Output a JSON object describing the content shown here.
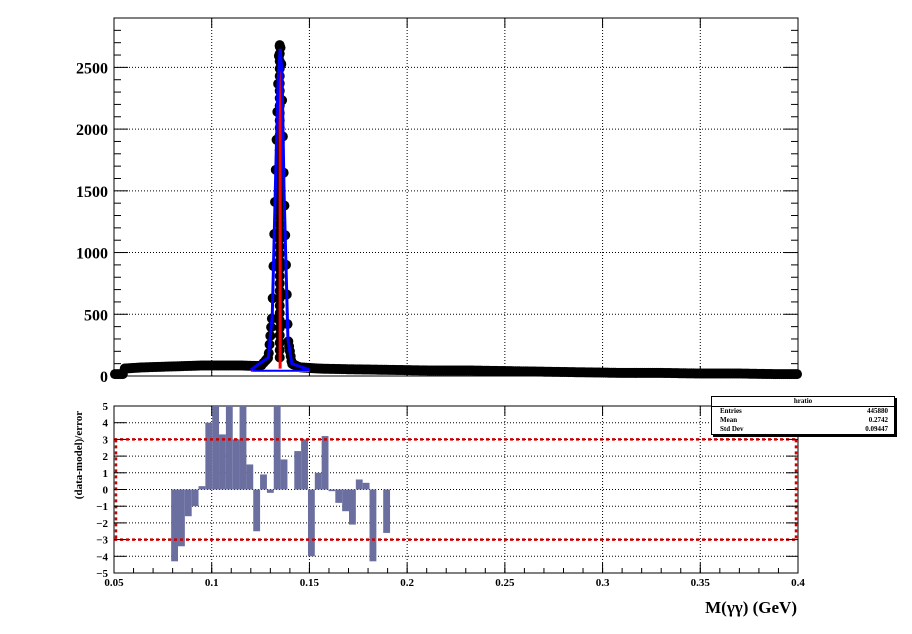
{
  "chart_data": [
    {
      "type": "scatter",
      "panel": "main",
      "xlim": [
        0.05,
        0.4
      ],
      "ylim": [
        0,
        2900
      ],
      "y_ticks": [
        0,
        500,
        1000,
        1500,
        2000,
        2500
      ],
      "grid": true,
      "data_points": {
        "x": [
          0.055,
          0.065,
          0.075,
          0.085,
          0.095,
          0.105,
          0.115,
          0.125,
          0.129,
          0.131,
          0.133,
          0.1345,
          0.135,
          0.1355,
          0.137,
          0.139,
          0.141,
          0.145,
          0.155,
          0.17,
          0.19,
          0.21,
          0.23,
          0.25,
          0.27,
          0.29,
          0.31,
          0.33,
          0.35,
          0.37,
          0.39
        ],
        "y": [
          60,
          70,
          75,
          80,
          85,
          85,
          85,
          80,
          150,
          500,
          1800,
          2650,
          2700,
          2600,
          1500,
          300,
          100,
          70,
          60,
          55,
          50,
          45,
          45,
          40,
          35,
          30,
          25,
          25,
          20,
          20,
          15
        ]
      },
      "fit_model": {
        "color": "#0000ff",
        "x": [
          0.12,
          0.129,
          0.131,
          0.133,
          0.134,
          0.135,
          0.136,
          0.137,
          0.139,
          0.141,
          0.15
        ],
        "y": [
          50,
          150,
          500,
          1800,
          2400,
          2650,
          2450,
          1500,
          300,
          100,
          50
        ]
      },
      "signal_component": {
        "color": "#ff0000",
        "peak_x": 0.135,
        "peak_y": 2650
      },
      "background_line": {
        "color": "#ff00ff",
        "x": [
          0.12,
          0.15
        ],
        "y": [
          40,
          40
        ]
      }
    },
    {
      "type": "bar",
      "panel": "ratio",
      "ylabel": "(data-model)/error",
      "xlabel": "M(γγ) (GeV)",
      "xlim": [
        0.05,
        0.4
      ],
      "ylim": [
        -5,
        5
      ],
      "x_ticks": [
        "0.05",
        "0.1",
        "0.15",
        "0.2",
        "0.25",
        "0.3",
        "0.35",
        "0.4"
      ],
      "y_ticks": [
        "−5",
        "−4",
        "−3",
        "−2",
        "−1",
        "0",
        "1",
        "2",
        "3",
        "4",
        "5"
      ],
      "reference_lines": {
        "values": [
          3,
          -3
        ],
        "color": "#cc0000",
        "style": "dashed"
      },
      "bar_color": "#6a6fa0",
      "bin_width": 0.0035,
      "bins": {
        "x": [
          0.081,
          0.0845,
          0.088,
          0.0915,
          0.095,
          0.0985,
          0.102,
          0.1055,
          0.109,
          0.1125,
          0.116,
          0.1195,
          0.123,
          0.1265,
          0.13,
          0.1335,
          0.137,
          0.1405,
          0.144,
          0.1475,
          0.151,
          0.1545,
          0.158,
          0.1615,
          0.165,
          0.1685,
          0.172,
          0.1755,
          0.179,
          0.1825,
          0.186,
          0.1895,
          0.193
        ],
        "y": [
          -4.3,
          -3.4,
          -1.6,
          -1.0,
          0.2,
          4.0,
          5.0,
          3.3,
          5.0,
          3.0,
          5.0,
          1.5,
          -2.5,
          0.9,
          -0.2,
          5.0,
          1.8,
          0.0,
          2.3,
          3.0,
          -4.0,
          1.0,
          3.2,
          -0.1,
          -0.8,
          -1.3,
          -2.1,
          0.6,
          0.4,
          -4.3,
          0.0,
          -2.6,
          0.0
        ]
      }
    }
  ],
  "stats_box": {
    "title": "hratio",
    "rows": [
      {
        "label": "Entries",
        "value": "445880"
      },
      {
        "label": "Mean",
        "value": "0.2742"
      },
      {
        "label": "Std Dev",
        "value": "0.09447"
      }
    ]
  }
}
